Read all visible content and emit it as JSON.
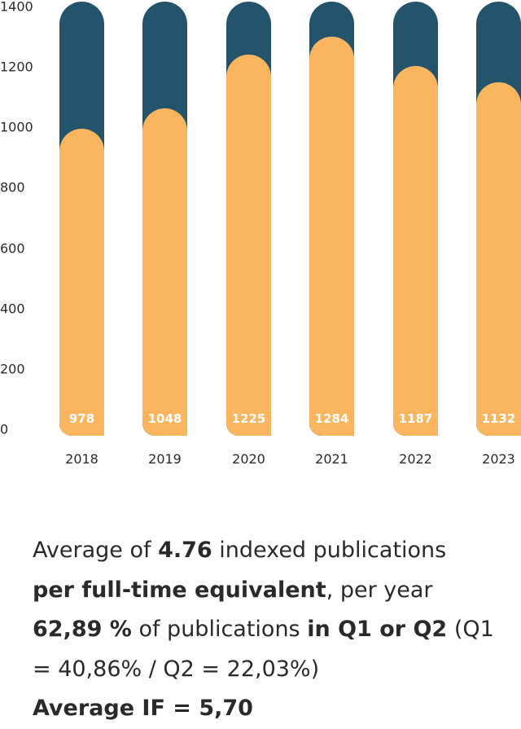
{
  "chart_data": {
    "type": "bar",
    "categories": [
      "2018",
      "2019",
      "2020",
      "2021",
      "2022",
      "2023"
    ],
    "values": [
      978,
      1048,
      1225,
      1284,
      1187,
      1132
    ],
    "ylim": [
      0,
      1400
    ],
    "yticks": [
      "0",
      "200",
      "400",
      "600",
      "800",
      "1000",
      "1200",
      "1400"
    ],
    "colors": {
      "fill": "#fbb55e",
      "background": "#23546b"
    }
  },
  "summary": {
    "l1a": "Average of ",
    "l1b": "4.76",
    "l1c": " indexed publications",
    "l2a": "per full-time equivalent",
    "l2b": ", per year",
    "l3a": "62,89 %",
    "l3b": " of publications ",
    "l3c": "in Q1 or Q2",
    "l3d": " (Q1 = 40,86% / Q2 = 22,03%)",
    "l4": "Average IF = 5,70"
  }
}
